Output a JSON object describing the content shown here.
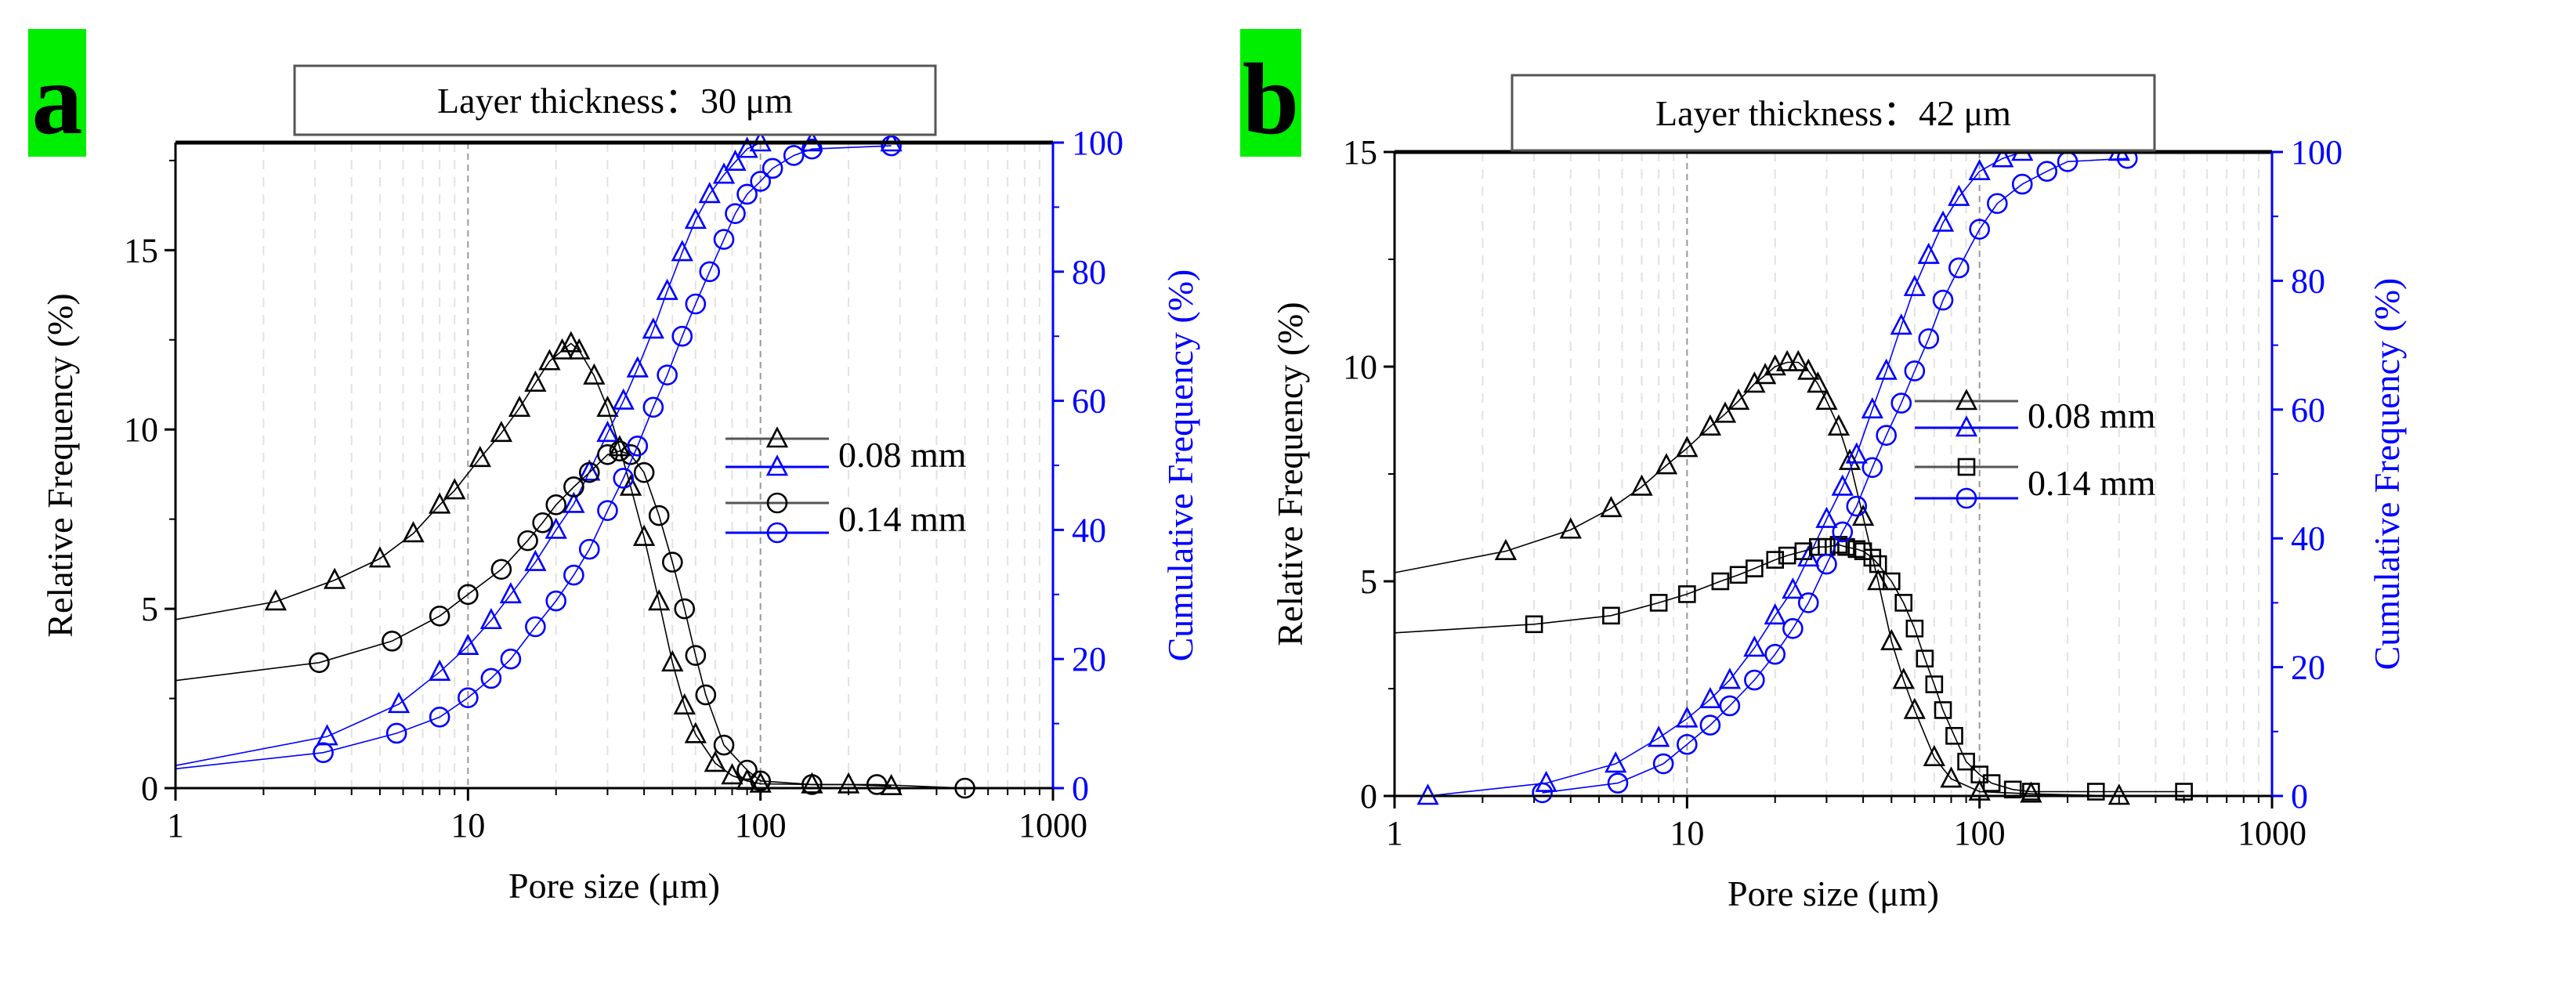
{
  "colors": {
    "black": "#000000",
    "blue": "#0000ff",
    "label_bg": "#00ee00",
    "grid": "#bbbbbb"
  },
  "chart_data": [
    {
      "panel_label": "a",
      "type": "scatter-line",
      "title": "Layer thickness：30 μm",
      "xlabel": "Pore size (μm)",
      "ylabel_left": "Relative Frequency (%)",
      "ylabel_right": "Cumulative Frequency (%)",
      "xscale": "log",
      "xlim": [
        1,
        1000
      ],
      "ylim_left": [
        0,
        18
      ],
      "ylim_right": [
        0,
        100
      ],
      "xticks": [
        "1",
        "10",
        "100",
        "1000"
      ],
      "yticks_left": [
        "0",
        "5",
        "10",
        "15"
      ],
      "yticks_right": [
        "0",
        "20",
        "40",
        "60",
        "80",
        "100"
      ],
      "grid": "vertical dashed",
      "legend_placement": "center-right",
      "legend": [
        "0.08 mm",
        "0.14 mm"
      ],
      "series": [
        {
          "name": "0.08 mm",
          "axis": "left",
          "marker": "triangle",
          "color": "#000000",
          "legend_row": 0,
          "x": [
            1,
            2.2,
            3.5,
            5,
            6.5,
            8,
            9,
            11,
            13,
            15,
            17,
            19,
            21,
            22.5,
            24,
            27,
            30,
            33,
            36,
            40,
            45,
            50,
            55,
            60,
            70,
            80,
            90,
            100,
            150,
            200,
            280
          ],
          "y": [
            4.7,
            5.2,
            5.8,
            6.4,
            7.1,
            7.9,
            8.3,
            9.2,
            9.9,
            10.6,
            11.3,
            11.9,
            12.2,
            12.4,
            12.2,
            11.5,
            10.6,
            9.5,
            8.4,
            7.0,
            5.2,
            3.5,
            2.3,
            1.5,
            0.7,
            0.35,
            0.2,
            0.12,
            0.1,
            0.1,
            0.05
          ]
        },
        {
          "name": "0.08 mm cumulative",
          "axis": "right",
          "marker": "triangle",
          "color": "#0000ff",
          "legend_row": 1,
          "x": [
            1,
            3.3,
            5.8,
            8,
            10,
            12,
            14,
            17,
            20,
            23,
            26,
            30,
            34,
            38,
            43,
            48,
            54,
            60,
            67,
            75,
            82,
            90,
            100,
            150,
            280
          ],
          "y": [
            3.5,
            8,
            13,
            18,
            22,
            26,
            30,
            35,
            40,
            44,
            49,
            55,
            60,
            65,
            71,
            77,
            83,
            88,
            92,
            95,
            97,
            99,
            100,
            100,
            100
          ]
        },
        {
          "name": "0.14 mm",
          "axis": "left",
          "marker": "circle",
          "color": "#000000",
          "legend_row": 2,
          "x": [
            1,
            3.1,
            5.5,
            8,
            10,
            13,
            16,
            18,
            20,
            23,
            26,
            30,
            33,
            36,
            40,
            45,
            50,
            55,
            60,
            65,
            75,
            90,
            100,
            150,
            250,
            500
          ],
          "y": [
            3.0,
            3.5,
            4.1,
            4.8,
            5.4,
            6.1,
            6.9,
            7.4,
            7.9,
            8.4,
            8.8,
            9.3,
            9.4,
            9.3,
            8.8,
            7.6,
            6.3,
            5.0,
            3.7,
            2.6,
            1.2,
            0.5,
            0.2,
            0.1,
            0.1,
            0.0
          ]
        },
        {
          "name": "0.14 mm cumulative",
          "axis": "right",
          "marker": "circle",
          "color": "#0000ff",
          "legend_row": 3,
          "x": [
            1,
            3.2,
            5.7,
            8,
            10,
            12,
            14,
            17,
            20,
            23,
            26,
            30,
            34,
            38,
            43,
            48,
            54,
            60,
            67,
            75,
            82,
            90,
            100,
            110,
            130,
            150,
            280
          ],
          "y": [
            3,
            5.5,
            8.5,
            11,
            14,
            17,
            20,
            25,
            29,
            33,
            37,
            43,
            48,
            53,
            59,
            64,
            70,
            75,
            80,
            85,
            89,
            92,
            94,
            96,
            98,
            99,
            99.5
          ]
        }
      ]
    },
    {
      "panel_label": "b",
      "type": "scatter-line",
      "title": "Layer thickness：42 μm",
      "xlabel": "Pore size (μm)",
      "ylabel_left": "Relative Frequency (%)",
      "ylabel_right": "Cumulative Frequency (%)",
      "xscale": "log",
      "xlim": [
        1,
        1000
      ],
      "ylim_left": [
        0,
        15
      ],
      "ylim_right": [
        0,
        100
      ],
      "xticks": [
        "1",
        "10",
        "100",
        "1000"
      ],
      "yticks_left": [
        "0",
        "5",
        "10",
        "15"
      ],
      "yticks_right": [
        "0",
        "20",
        "40",
        "60",
        "80",
        "100"
      ],
      "grid": "vertical dashed",
      "legend_placement": "center-right",
      "legend": [
        "0.08 mm",
        "0.14 mm"
      ],
      "series": [
        {
          "name": "0.08 mm",
          "axis": "left",
          "marker": "triangle",
          "color": "#000000",
          "legend_row": 0,
          "x": [
            1,
            2.4,
            4,
            5.5,
            7,
            8.5,
            10,
            12,
            13.5,
            15,
            17,
            18.5,
            20,
            22,
            24,
            26,
            28,
            30,
            33,
            36,
            40,
            45,
            50,
            55,
            60,
            70,
            80,
            100,
            150,
            300
          ],
          "y": [
            5.2,
            5.7,
            6.2,
            6.7,
            7.2,
            7.7,
            8.1,
            8.6,
            8.9,
            9.2,
            9.6,
            9.8,
            10.0,
            10.1,
            10.1,
            9.9,
            9.6,
            9.2,
            8.6,
            7.8,
            6.5,
            5.0,
            3.6,
            2.7,
            2.0,
            0.9,
            0.4,
            0.1,
            0.05,
            0.0
          ]
        },
        {
          "name": "0.08 mm cumulative",
          "axis": "right",
          "marker": "triangle",
          "color": "#0000ff",
          "legend_row": 1,
          "x": [
            1.3,
            3.3,
            5.7,
            8,
            10,
            12,
            14,
            17,
            20,
            23,
            26,
            30,
            34,
            38,
            43,
            48,
            54,
            60,
            67,
            75,
            85,
            100,
            120,
            140,
            300
          ],
          "y": [
            0,
            2,
            5,
            9,
            12,
            15,
            18,
            23,
            28,
            32,
            37,
            43,
            48,
            53,
            60,
            66,
            73,
            79,
            84,
            89,
            93,
            97,
            99,
            100,
            100
          ]
        },
        {
          "name": "0.14 mm",
          "axis": "left",
          "marker": "square",
          "color": "#000000",
          "legend_row": 2,
          "x": [
            1,
            3,
            5.5,
            8,
            10,
            13,
            15,
            17,
            20,
            22,
            25,
            28,
            30,
            33,
            35,
            38,
            40,
            43,
            45,
            50,
            55,
            60,
            65,
            70,
            75,
            82,
            90,
            100,
            110,
            130,
            150,
            250,
            500
          ],
          "y": [
            3.8,
            4.0,
            4.2,
            4.5,
            4.7,
            5.0,
            5.15,
            5.3,
            5.5,
            5.6,
            5.7,
            5.8,
            5.8,
            5.85,
            5.8,
            5.75,
            5.7,
            5.55,
            5.4,
            5.0,
            4.5,
            3.9,
            3.2,
            2.6,
            2.0,
            1.4,
            0.8,
            0.5,
            0.3,
            0.15,
            0.1,
            0.1,
            0.1
          ]
        },
        {
          "name": "0.14 mm cumulative",
          "axis": "right",
          "marker": "circle",
          "color": "#0000ff",
          "legend_row": 3,
          "x": [
            3.2,
            5.8,
            8.3,
            10,
            12,
            14,
            17,
            20,
            23,
            26,
            30,
            34,
            38,
            43,
            48,
            54,
            60,
            67,
            75,
            85,
            100,
            115,
            140,
            170,
            200,
            320
          ],
          "y": [
            0.5,
            2,
            5,
            8,
            11,
            14,
            18,
            22,
            26,
            30,
            36,
            41,
            45,
            51,
            56,
            61,
            66,
            71,
            77,
            82,
            88,
            92,
            95,
            97,
            98.5,
            99
          ]
        }
      ]
    }
  ]
}
